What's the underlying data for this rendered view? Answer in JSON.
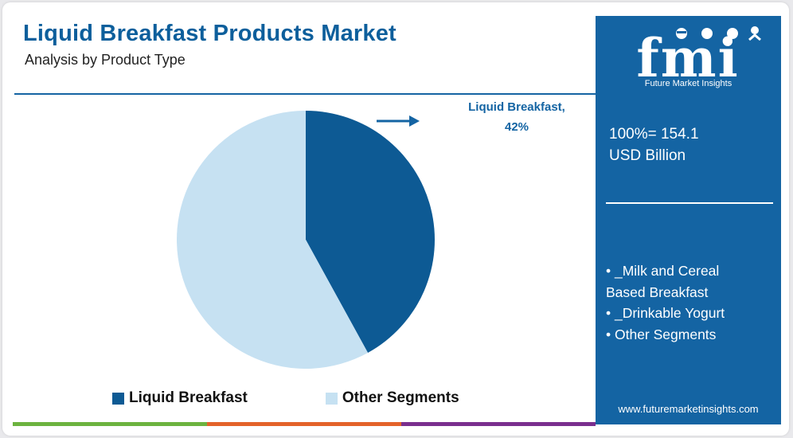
{
  "header": {
    "title": "Liquid Breakfast Products Market",
    "subtitle": "Analysis by Product Type"
  },
  "chart_data": {
    "type": "pie",
    "title": "",
    "slices": [
      {
        "name": "Liquid Breakfast",
        "value": 42,
        "color": "#0d5a94"
      },
      {
        "name": "Other Segments",
        "value": 58,
        "color": "#c6e1f2"
      }
    ],
    "callout": {
      "line1": "Liquid Breakfast,",
      "line2": "42%"
    },
    "legend": {
      "placement": "bottom",
      "items": [
        {
          "label": "Liquid Breakfast",
          "color": "#0d5a94"
        },
        {
          "label": "Other Segments",
          "color": "#c6e1f2"
        }
      ]
    }
  },
  "sidebar": {
    "logo": {
      "text": "fmi",
      "tagline": "Future Market Insights"
    },
    "total_value": "100%= 154.1",
    "total_unit": "USD Billion",
    "segments": [
      "• _Milk and Cereal",
      "Based Breakfast",
      "• _Drinkable Yogurt",
      "• Other Segments"
    ],
    "website": "www.futuremarketinsights.com",
    "background_color": "#1464a3"
  },
  "bottom_bar": {
    "colors": [
      "#6cb33f",
      "#e4632a",
      "#7a2f8e"
    ]
  }
}
